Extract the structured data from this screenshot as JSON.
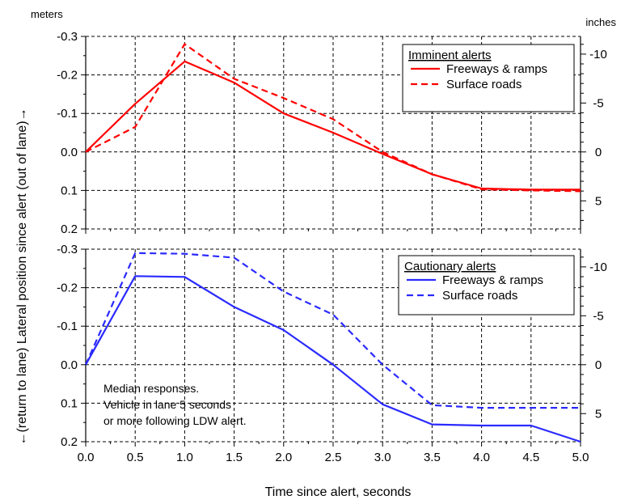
{
  "units": {
    "left": "meters",
    "right": "inches"
  },
  "ylabel": "←(return to lane)   Lateral position since alert   (out of lane)→",
  "xlabel": "Time since alert, seconds",
  "note": [
    "Median responses.",
    "Vehicle in lane 5 seconds",
    "or more following LDW alert."
  ],
  "colors": {
    "imminent": "#ff0000",
    "cautionary": "#2a2aff"
  },
  "chart_data": [
    {
      "type": "line",
      "legend_title": "Imminent alerts",
      "legend_position": "top-right",
      "grid": true,
      "x": [
        0.0,
        0.5,
        1.0,
        1.5,
        2.0,
        2.5,
        3.0,
        3.5,
        4.0,
        4.5,
        5.0
      ],
      "xlim": [
        0,
        5
      ],
      "ylim": [
        -0.3,
        0.2
      ],
      "y_inverted": true,
      "yticks": [
        "-0.3",
        "-0.2",
        "-0.1",
        "0.0",
        "0.1",
        "0.2"
      ],
      "right_ticks": [
        "-10",
        "-5",
        "0",
        "5"
      ],
      "series": [
        {
          "name": "Freeways & ramps",
          "style": "solid",
          "values": [
            0.0,
            -0.125,
            -0.235,
            -0.18,
            -0.1,
            -0.05,
            0.005,
            0.058,
            0.095,
            0.098,
            0.098
          ]
        },
        {
          "name": "Surface roads",
          "style": "dashed",
          "values": [
            0.0,
            -0.065,
            -0.28,
            -0.19,
            -0.14,
            -0.085,
            0.0,
            0.058,
            0.097,
            0.1,
            0.102
          ]
        }
      ]
    },
    {
      "type": "line",
      "legend_title": "Cautionary alerts",
      "legend_position": "top-right",
      "grid": true,
      "x": [
        0.0,
        0.5,
        1.0,
        1.5,
        2.0,
        2.5,
        3.0,
        3.5,
        4.0,
        4.5,
        5.0
      ],
      "xlim": [
        0,
        5
      ],
      "ylim": [
        -0.3,
        0.2
      ],
      "y_inverted": true,
      "xticks": [
        "0.0",
        "0.5",
        "1.0",
        "1.5",
        "2.0",
        "2.5",
        "3.0",
        "3.5",
        "4.0",
        "4.5",
        "5.0"
      ],
      "yticks": [
        "-0.3",
        "-0.2",
        "-0.1",
        "0.0",
        "0.1",
        "0.2"
      ],
      "right_ticks": [
        "-10",
        "-5",
        "0",
        "5"
      ],
      "series": [
        {
          "name": "Freeways & ramps",
          "style": "solid",
          "values": [
            0.0,
            -0.23,
            -0.228,
            -0.15,
            -0.09,
            0.0,
            0.103,
            0.155,
            0.158,
            0.158,
            0.2
          ]
        },
        {
          "name": "Surface roads",
          "style": "dashed",
          "values": [
            0.0,
            -0.29,
            -0.288,
            -0.278,
            -0.19,
            -0.13,
            0.0,
            0.105,
            0.112,
            0.112,
            0.112
          ]
        }
      ]
    }
  ]
}
